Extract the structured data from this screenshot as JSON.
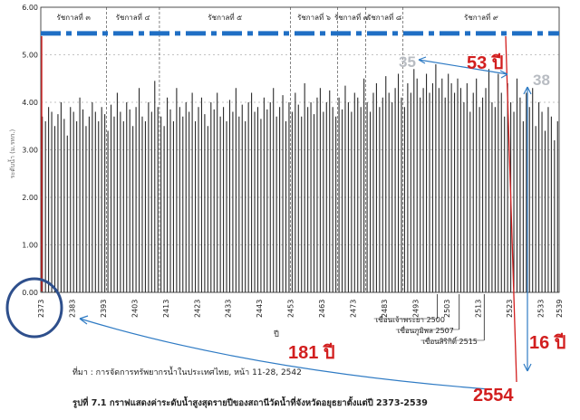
{
  "chart_data": {
    "type": "bar",
    "ylim": [
      0,
      6
    ],
    "y_ticks": [
      "0.00",
      "1.00",
      "2.00",
      "3.00",
      "4.00",
      "5.00",
      "6.00"
    ],
    "ylabel": "ระดับน้ำ (ม.รทก.)",
    "xlabel": "ปี",
    "x_ticks": [
      "2373",
      "2383",
      "2393",
      "2403",
      "2413",
      "2423",
      "2433",
      "2443",
      "2453",
      "2463",
      "2473",
      "2483",
      "2493",
      "2503",
      "2513",
      "2523",
      "2533",
      "2539"
    ],
    "x_range": [
      2373,
      2539
    ],
    "reigns": [
      {
        "label": "รัชกาลที่ ๓",
        "start": 2373,
        "end": 2394
      },
      {
        "label": "รัชกาลที่ ๔",
        "start": 2394,
        "end": 2411
      },
      {
        "label": "รัชกาลที่ ๕",
        "start": 2411,
        "end": 2453
      },
      {
        "label": "รัชกาลที่ ๖",
        "start": 2453,
        "end": 2468
      },
      {
        "label": "รัชกาลที่ ๗",
        "start": 2468,
        "end": 2477
      },
      {
        "label": "รัชกาลที่ ๘",
        "start": 2477,
        "end": 2489
      },
      {
        "label": "รัชกาลที่ ๙",
        "start": 2489,
        "end": 2539
      }
    ],
    "dams": [
      {
        "label": "เขื่อนเจ้าพระยา 2500",
        "year": 2500
      },
      {
        "label": "เขื่อนภูมิพล 2507",
        "year": 2507
      },
      {
        "label": "เขื่อนสิริกิติ์ 2515",
        "year": 2515
      }
    ],
    "reference_level": 5.45,
    "series": [
      {
        "values": [
          3.7,
          3.6,
          3.9,
          3.8,
          3.5,
          3.75,
          4.0,
          3.65,
          3.3,
          3.9,
          3.8,
          3.6,
          4.1,
          3.85,
          3.5,
          3.7,
          4.0,
          3.8,
          3.6,
          3.9,
          3.75,
          3.4,
          3.95,
          3.7,
          4.2,
          3.8,
          3.6,
          4.0,
          3.85,
          3.5,
          3.9,
          4.3,
          3.7,
          3.6,
          4.0,
          3.8,
          4.45,
          3.9,
          3.7,
          3.5,
          4.1,
          3.85,
          3.6,
          4.3,
          3.9,
          3.7,
          4.0,
          3.8,
          4.2,
          3.6,
          3.9,
          4.1,
          3.75,
          3.5,
          4.0,
          3.85,
          4.2,
          3.7,
          3.9,
          3.6,
          4.05,
          3.8,
          4.3,
          3.7,
          3.95,
          3.6,
          4.0,
          4.2,
          3.8,
          3.9,
          3.65,
          4.1,
          3.85,
          4.0,
          4.3,
          3.7,
          3.9,
          4.15,
          3.6,
          4.0,
          3.8,
          4.2,
          3.95,
          3.7,
          4.4,
          3.9,
          4.0,
          3.75,
          4.1,
          4.3,
          3.8,
          4.0,
          4.25,
          3.9,
          3.7,
          4.1,
          3.85,
          4.35,
          4.0,
          3.8,
          4.2,
          4.1,
          3.9,
          4.5,
          4.0,
          3.8,
          4.2,
          4.4,
          3.9,
          4.1,
          4.55,
          4.2,
          4.0,
          4.3,
          4.6,
          4.1,
          3.9,
          4.4,
          4.2,
          4.7,
          4.5,
          4.1,
          4.3,
          4.6,
          4.2,
          4.4,
          4.8,
          4.3,
          4.5,
          4.1,
          4.6,
          4.4,
          4.2,
          4.5,
          4.3,
          4.0,
          4.4,
          3.8,
          4.2,
          4.5,
          3.9,
          4.1,
          4.3,
          4.7,
          4.0,
          3.9,
          4.6,
          4.2,
          3.7,
          4.4,
          4.0,
          3.8,
          4.5,
          4.1,
          3.6,
          4.2,
          3.9,
          4.3,
          3.5,
          4.0,
          3.8,
          3.4,
          3.9,
          3.7,
          3.2,
          3.6
        ]
      }
    ]
  },
  "annotations": {
    "label_53": "53 ปี",
    "label_35": "35",
    "label_38": "38",
    "label_181": "181 ปี",
    "label_16": "16 ปี",
    "label_2554": "2554"
  },
  "source": "ที่มา : การจัดการทรัพยากรน้ำในประเทศไทย, หน้า 11-28, 2542",
  "caption": "รูปที่ 7.1  กราฟแสดงค่าระดับน้ำสูงสุดรายปีของสถานีวัดน้ำที่จังหวัดอยุธยาตั้งแต่ปี 2373-2539"
}
